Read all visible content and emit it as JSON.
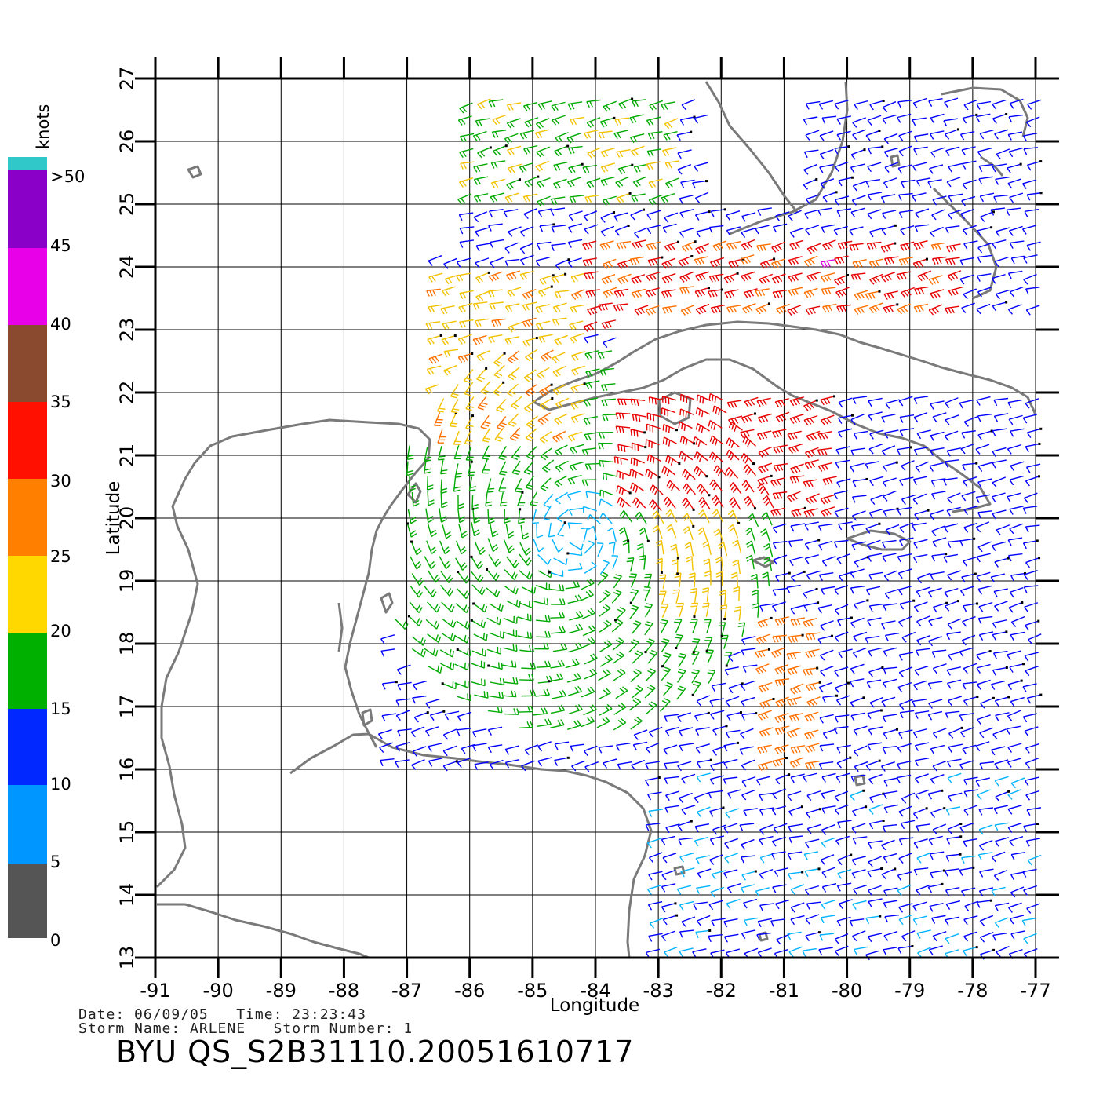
{
  "legend": {
    "unit": "knots",
    "top_label": ">50",
    "labels": [
      "45",
      "40",
      "35",
      "30",
      "25",
      "20",
      "15",
      "10",
      "5",
      "0"
    ]
  },
  "axes": {
    "xlabel": "Longitude",
    "ylabel": "Latitude",
    "lon_ticks": [
      "-91",
      "-90",
      "-89",
      "-88",
      "-87",
      "-86",
      "-85",
      "-84",
      "-83",
      "-82",
      "-81",
      "-80",
      "-79",
      "-78",
      "-77"
    ],
    "lat_ticks": [
      "13",
      "14",
      "15",
      "16",
      "17",
      "18",
      "19",
      "20",
      "21",
      "22",
      "23",
      "24",
      "25",
      "26",
      "27"
    ]
  },
  "meta": {
    "date_line": "Date: 06/09/05   Time: 23:23:43",
    "storm_line": "Storm Name: ARLENE   Storm Number: 1",
    "product_id": "BYU QS_S2B31110.20051610717"
  },
  "map_data": {
    "lon_range": [
      -91,
      -77
    ],
    "lat_range": [
      13,
      27
    ],
    "storm_center": {
      "lon": -84.3,
      "lat": 19.7
    },
    "colors": {
      "coast": "#7a7a7a",
      "calm": "#0000ff",
      "light": "#00b4ff",
      "moderate": "#00aa00",
      "fresh": "#f2c200",
      "strong": "#ff7000",
      "gale": "#e80000",
      "severe": "#e000e0"
    }
  }
}
